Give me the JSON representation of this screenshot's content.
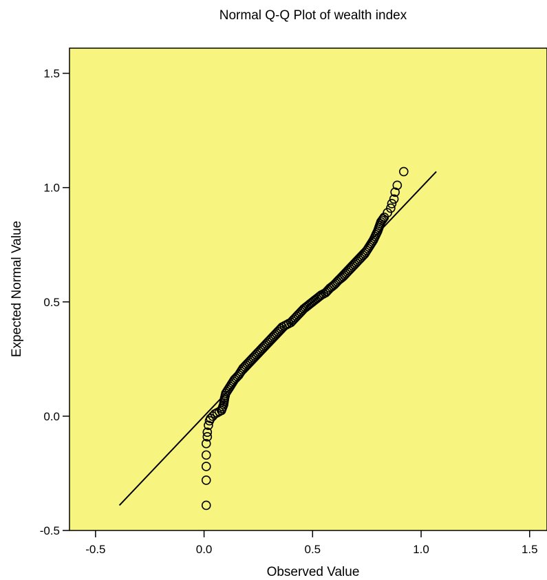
{
  "chart_data": {
    "type": "scatter",
    "title": "Normal Q-Q Plot of wealth index",
    "xlabel": "Observed Value",
    "ylabel": "Expected Normal Value",
    "xlim": [
      -0.62,
      1.58
    ],
    "ylim": [
      -0.5,
      1.61
    ],
    "xticks": [
      "-0.5",
      "0.0",
      "0.5",
      "1.0",
      "1.5"
    ],
    "yticks": [
      "-0.5",
      "0.0",
      "0.5",
      "1.0",
      "1.5"
    ],
    "reference_line": {
      "x": [
        -0.39,
        1.07
      ],
      "y": [
        -0.39,
        1.07
      ]
    },
    "plot_background": "#f7f57f",
    "marker": "open-circle",
    "series": [
      {
        "points": [
          [
            0.01,
            -0.39
          ],
          [
            0.01,
            -0.28
          ],
          [
            0.01,
            -0.22
          ],
          [
            0.01,
            -0.17
          ],
          [
            0.01,
            -0.12
          ],
          [
            0.015,
            -0.09
          ],
          [
            0.015,
            -0.07
          ],
          [
            0.02,
            -0.04
          ],
          [
            0.025,
            -0.02
          ],
          [
            0.03,
            -0.01
          ],
          [
            0.04,
            0.0
          ],
          [
            0.05,
            0.01
          ],
          [
            0.06,
            0.015
          ],
          [
            0.07,
            0.02
          ],
          [
            0.08,
            0.025
          ],
          [
            0.09,
            0.05
          ],
          [
            0.095,
            0.08
          ],
          [
            0.1,
            0.1
          ],
          [
            0.12,
            0.13
          ],
          [
            0.14,
            0.16
          ],
          [
            0.16,
            0.18
          ],
          [
            0.18,
            0.21
          ],
          [
            0.2,
            0.23
          ],
          [
            0.22,
            0.25
          ],
          [
            0.24,
            0.27
          ],
          [
            0.26,
            0.29
          ],
          [
            0.28,
            0.31
          ],
          [
            0.3,
            0.33
          ],
          [
            0.32,
            0.35
          ],
          [
            0.34,
            0.37
          ],
          [
            0.36,
            0.39
          ],
          [
            0.38,
            0.4
          ],
          [
            0.4,
            0.41
          ],
          [
            0.42,
            0.43
          ],
          [
            0.44,
            0.45
          ],
          [
            0.46,
            0.47
          ],
          [
            0.48,
            0.485
          ],
          [
            0.5,
            0.5
          ],
          [
            0.52,
            0.515
          ],
          [
            0.54,
            0.53
          ],
          [
            0.56,
            0.54
          ],
          [
            0.58,
            0.56
          ],
          [
            0.6,
            0.575
          ],
          [
            0.62,
            0.595
          ],
          [
            0.64,
            0.61
          ],
          [
            0.66,
            0.63
          ],
          [
            0.68,
            0.65
          ],
          [
            0.7,
            0.67
          ],
          [
            0.72,
            0.69
          ],
          [
            0.74,
            0.71
          ],
          [
            0.76,
            0.74
          ],
          [
            0.78,
            0.77
          ],
          [
            0.8,
            0.81
          ],
          [
            0.815,
            0.85
          ],
          [
            0.83,
            0.87
          ],
          [
            0.845,
            0.89
          ],
          [
            0.86,
            0.91
          ],
          [
            0.865,
            0.93
          ],
          [
            0.875,
            0.95
          ],
          [
            0.88,
            0.98
          ],
          [
            0.89,
            1.01
          ],
          [
            0.92,
            1.07
          ]
        ]
      }
    ]
  }
}
